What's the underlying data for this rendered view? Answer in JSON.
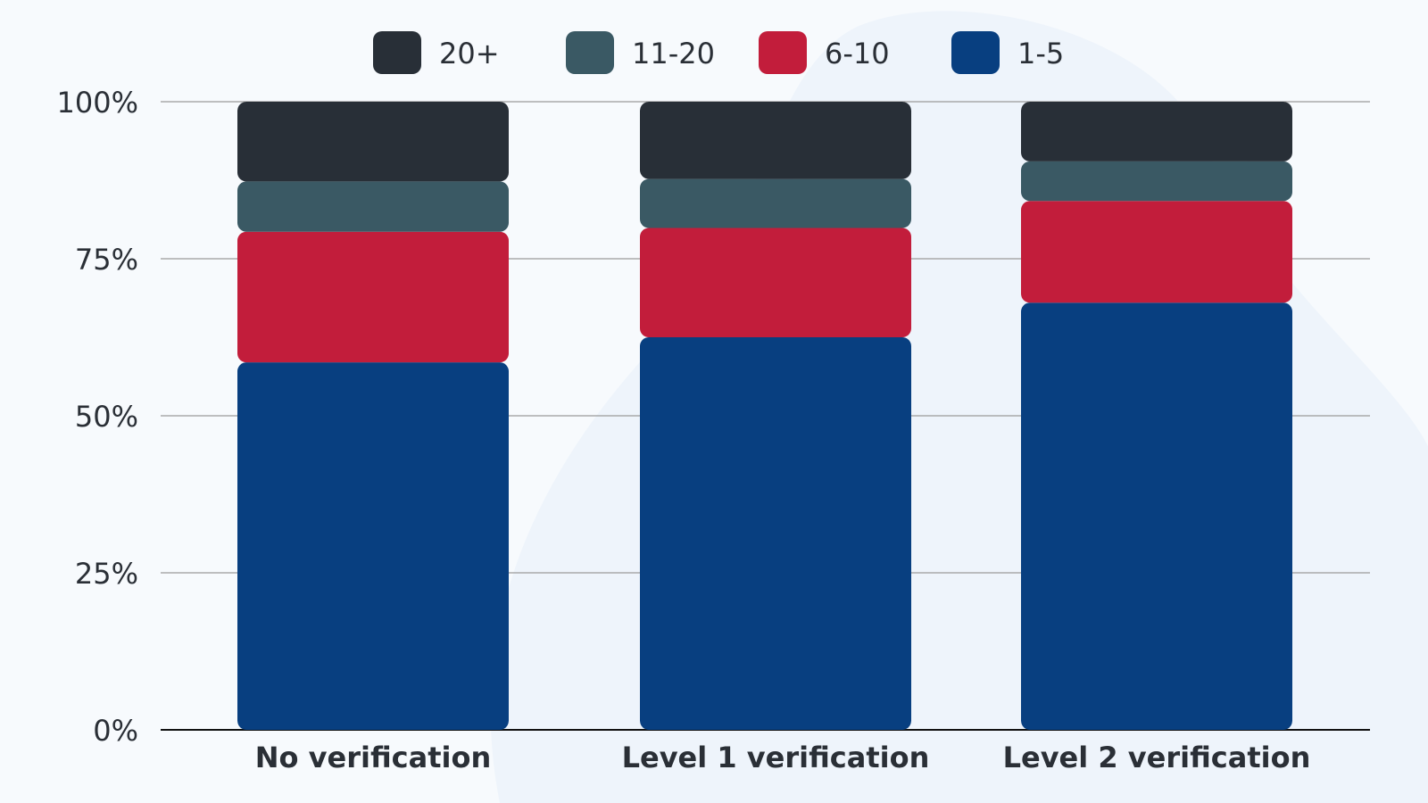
{
  "chart_data": {
    "type": "bar",
    "stacked": true,
    "title": "",
    "xlabel": "",
    "ylabel": "",
    "ylim": [
      0,
      100
    ],
    "y_ticks": [
      0,
      25,
      50,
      75,
      100
    ],
    "y_tick_labels": [
      "0%",
      "25%",
      "50%",
      "75%",
      "100%"
    ],
    "grid": true,
    "legend_position": "top-center",
    "categories": [
      "No verification",
      "Level 1 verification",
      "Level 2 verification"
    ],
    "series": [
      {
        "name": "1-5",
        "color": "#083f80",
        "values": [
          58.5,
          62.5,
          68
        ]
      },
      {
        "name": "6-10",
        "color": "#c21d3b",
        "values": [
          20.8,
          17.4,
          16.2
        ]
      },
      {
        "name": "11-20",
        "color": "#3a5964",
        "values": [
          8,
          7.8,
          6.3
        ]
      },
      {
        "name": "20+",
        "color": "#282f37",
        "values": [
          12.7,
          12.3,
          9.5
        ]
      }
    ],
    "legend_order": [
      "20+",
      "11-20",
      "6-10",
      "1-5"
    ]
  }
}
